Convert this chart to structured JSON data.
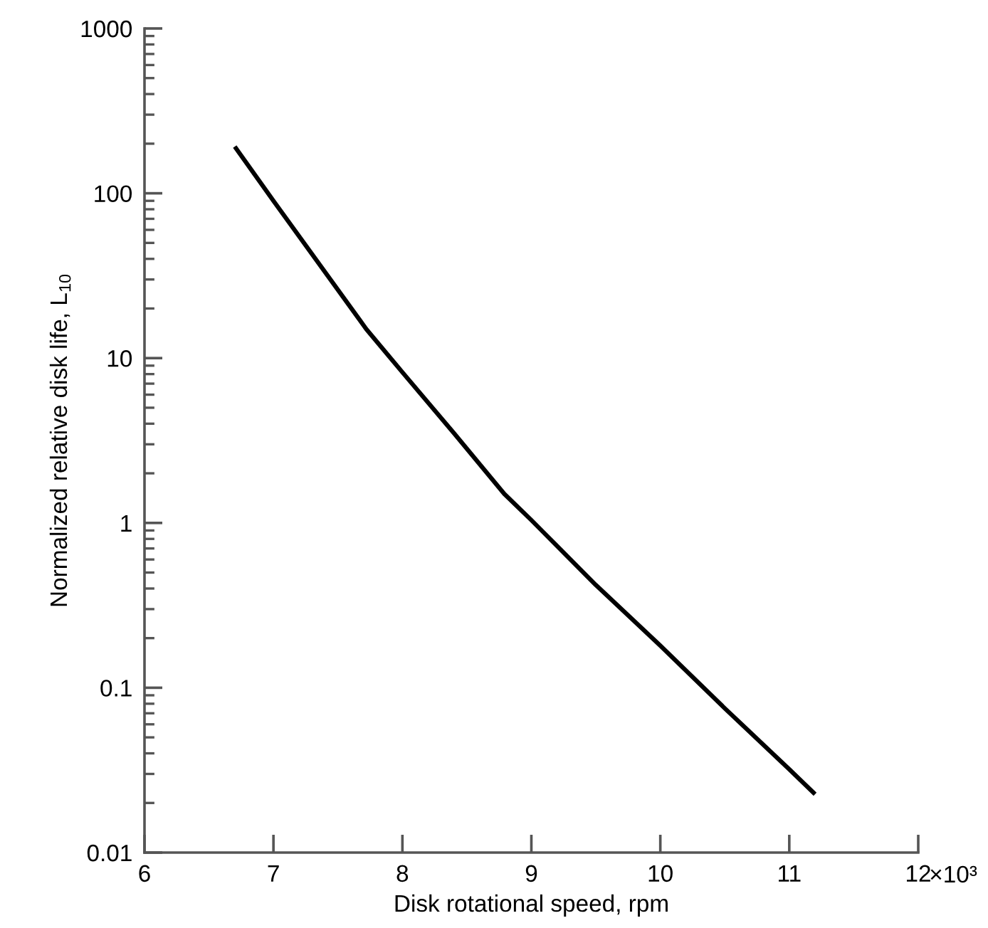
{
  "chart_data": {
    "type": "line",
    "xlabel": "Disk rotational speed, rpm",
    "ylabel": "Normalized relative disk life, L$_{10}$",
    "x": [
      6.7,
      7,
      7.72,
      8,
      8.4,
      8.79,
      9,
      9.5,
      10,
      10.5,
      11,
      11.2
    ],
    "series": [
      {
        "color": "#000000",
        "values": [
          192,
          90,
          15,
          8.2,
          3.5,
          1.5,
          1.04,
          0.42,
          0.18,
          0.075,
          0.032,
          0.0226
        ]
      }
    ],
    "log": "y",
    "xlim": [
      6,
      12
    ],
    "xticks": [
      6,
      7,
      8,
      9,
      10,
      11,
      12
    ],
    "annotations": [
      "×10³"
    ],
    "ylim": [
      0.01,
      1000
    ],
    "yticks": [
      0.01,
      0.1,
      1,
      10,
      100,
      1000
    ],
    "grid": false,
    "marker": "none",
    "line_style": "solid"
  }
}
